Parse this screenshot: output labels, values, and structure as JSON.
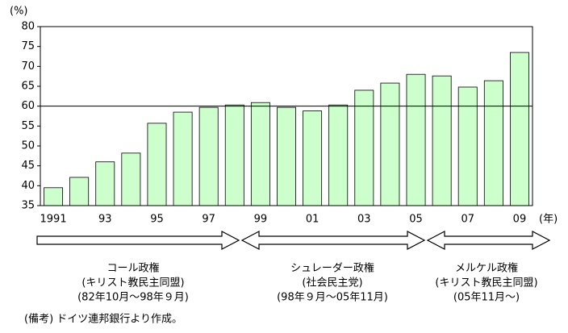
{
  "chart_data": {
    "type": "bar",
    "y_label": "(%)",
    "x_label": "(年)",
    "categories": [
      "1991",
      null,
      "93",
      null,
      "95",
      null,
      "97",
      null,
      "99",
      null,
      "01",
      null,
      "03",
      null,
      "05",
      null,
      "07",
      null,
      "09"
    ],
    "values": [
      39.5,
      42.1,
      46,
      48.2,
      55.7,
      58.5,
      59.7,
      60.3,
      60.9,
      59.7,
      58.8,
      60.3,
      64,
      65.8,
      68,
      67.6,
      64.8,
      66.4,
      73.5
    ],
    "color": "#ccffcc",
    "ylim": [
      35,
      80
    ],
    "yticks": [
      35,
      40,
      45,
      50,
      55,
      60,
      65,
      70,
      75,
      80
    ],
    "reference_line": 60
  },
  "periods": [
    {
      "lines": [
        "コール政権",
        "(キリスト教民主同盟)",
        "(82年10月～98年９月)"
      ]
    },
    {
      "lines": [
        "シュレーダー政権",
        "(社会民主党)",
        "(98年９月～05年11月)"
      ]
    },
    {
      "lines": [
        "メルケル政権",
        "(キリスト教民主同盟)",
        "(05年11月～)"
      ]
    }
  ],
  "note": "(備考) ドイツ連邦銀行より作成。"
}
